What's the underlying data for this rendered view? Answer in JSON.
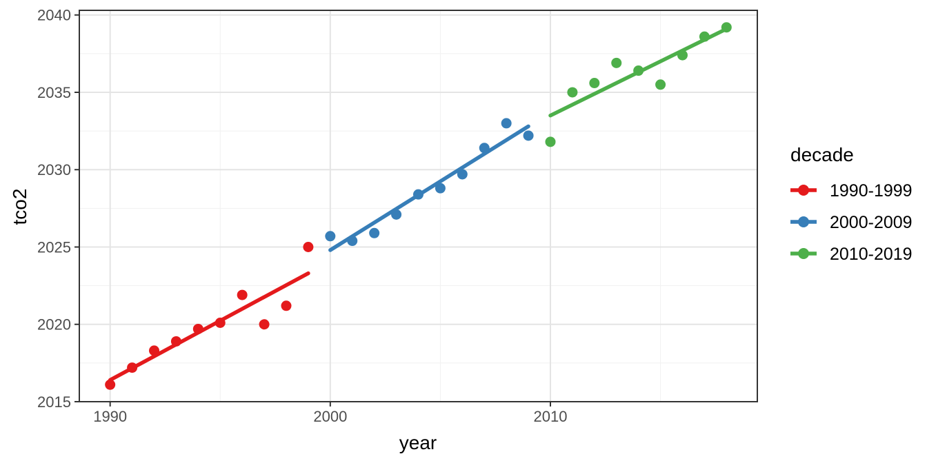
{
  "chart_data": {
    "type": "scatter",
    "xlabel": "year",
    "ylabel": "tco2",
    "legend_title": "decade",
    "legend_position": "right",
    "grid": true,
    "xlim": [
      1988.6,
      2019.4
    ],
    "ylim": [
      2015.0,
      2040.3
    ],
    "x_ticks_major": [
      1990,
      2000,
      2010
    ],
    "x_ticks_minor": [
      1995,
      2005,
      2015
    ],
    "y_ticks_major": [
      2015,
      2020,
      2025,
      2030,
      2035,
      2040
    ],
    "y_ticks_minor": [
      2017.5,
      2022.5,
      2027.5,
      2032.5,
      2037.5
    ],
    "series": [
      {
        "name": "1990-1999",
        "color": "#E41A1C",
        "x": [
          1990,
          1991,
          1992,
          1993,
          1994,
          1995,
          1996,
          1997,
          1998,
          1999
        ],
        "y": [
          2016.1,
          2017.2,
          2018.3,
          2018.9,
          2019.7,
          2020.1,
          2021.9,
          2020.0,
          2021.2,
          2025.0
        ],
        "trend": {
          "x1": 1990,
          "y1": 2016.4,
          "x2": 1999,
          "y2": 2023.3
        }
      },
      {
        "name": "2000-2009",
        "color": "#377EB8",
        "x": [
          2000,
          2001,
          2002,
          2003,
          2004,
          2005,
          2006,
          2007,
          2008,
          2009
        ],
        "y": [
          2025.7,
          2025.4,
          2025.9,
          2027.1,
          2028.4,
          2028.8,
          2029.7,
          2031.4,
          2033.0,
          2032.2
        ],
        "trend": {
          "x1": 2000,
          "y1": 2024.8,
          "x2": 2009,
          "y2": 2032.8
        }
      },
      {
        "name": "2010-2019",
        "color": "#4DAF4A",
        "x": [
          2010,
          2011,
          2012,
          2013,
          2014,
          2015,
          2016,
          2017,
          2018
        ],
        "y": [
          2031.8,
          2035.0,
          2035.6,
          2036.9,
          2036.4,
          2035.5,
          2037.4,
          2038.6,
          2039.2
        ],
        "trend": {
          "x1": 2010,
          "y1": 2033.5,
          "x2": 2018,
          "y2": 2039.1
        }
      }
    ],
    "style": {
      "panel_background": "#FFFFFF",
      "panel_border_color": "#333333",
      "grid_major_color": "#E4E4E4",
      "grid_minor_color": "#F1F1F1",
      "tick_color": "#333333",
      "tick_label_color": "#4d4d4d"
    }
  }
}
